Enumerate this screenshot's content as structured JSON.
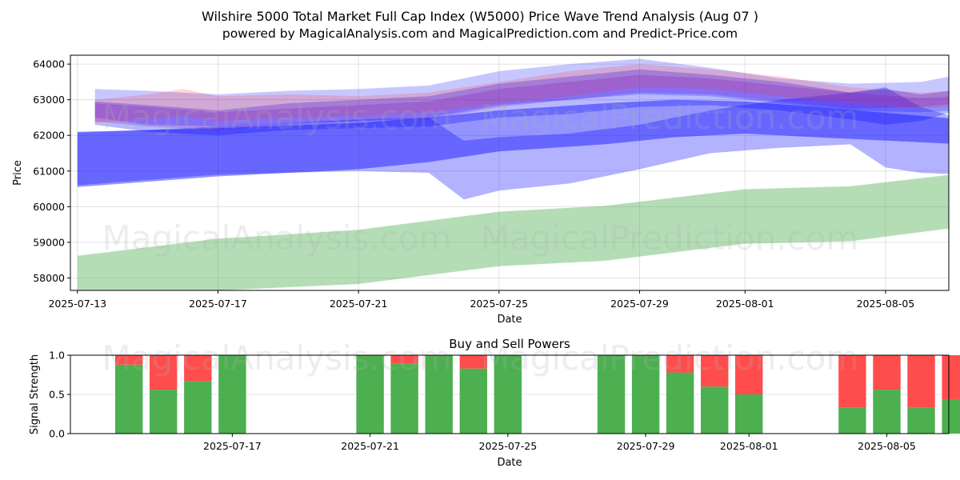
{
  "title_line1": "Wilshire 5000 Total Market Full Cap Index (W5000) Price Wave Trend Analysis (Aug 07 )",
  "title_line2": "powered by MagicalAnalysis.com and MagicalPrediction.com and Predict-Price.com",
  "watermarks": [
    "MagicalAnalysis.com",
    "MagicalPrediction.com"
  ],
  "chart_data": [
    {
      "type": "area",
      "title": "Wilshire 5000 Total Market Full Cap Index (W5000) Price Wave Trend Analysis (Aug 07 )",
      "xlabel": "Date",
      "ylabel": "Price",
      "x_start": "2025-07-13",
      "xlim_days": [
        -0.2,
        24.8
      ],
      "ylim": [
        57650,
        64250
      ],
      "x_ticks": [
        {
          "day": 0,
          "label": "2025-07-13"
        },
        {
          "day": 4,
          "label": "2025-07-17"
        },
        {
          "day": 8,
          "label": "2025-07-21"
        },
        {
          "day": 12,
          "label": "2025-07-25"
        },
        {
          "day": 16,
          "label": "2025-07-29"
        },
        {
          "day": 19,
          "label": "2025-08-01"
        },
        {
          "day": 23,
          "label": "2025-08-05"
        }
      ],
      "y_ticks": [
        58000,
        59000,
        60000,
        61000,
        62000,
        63000,
        64000
      ],
      "grid": true,
      "series": [
        {
          "name": "green band",
          "color": "#4caf50",
          "opacity": 0.42,
          "x": [
            0,
            4,
            8,
            12,
            15,
            19,
            22,
            25.3
          ],
          "upper": [
            58620,
            59100,
            59350,
            59860,
            60020,
            60490,
            60570,
            60950
          ],
          "lower": [
            57450,
            57650,
            57830,
            58330,
            58480,
            58960,
            59030,
            59450
          ]
        },
        {
          "name": "blue band (wide)",
          "color": "#0000ff",
          "opacity": 0.3,
          "x": [
            0,
            2,
            4,
            8,
            10,
            11,
            12,
            14,
            16,
            18,
            20,
            22,
            23,
            24,
            25.2
          ],
          "upper": [
            62080,
            62150,
            62250,
            62450,
            62500,
            61850,
            61950,
            62050,
            62300,
            62700,
            63000,
            63200,
            63350,
            62800,
            62450
          ],
          "lower": [
            60600,
            60750,
            60900,
            61000,
            60950,
            60200,
            60450,
            60650,
            61050,
            61500,
            61650,
            61750,
            61100,
            60950,
            60900
          ]
        },
        {
          "name": "blue band (core)",
          "color": "#0000ff",
          "opacity": 0.42,
          "x": [
            0,
            4,
            8,
            10,
            12,
            15,
            17,
            19,
            21,
            25.2
          ],
          "upper": [
            62100,
            62200,
            62350,
            62500,
            62700,
            62900,
            63000,
            62950,
            62800,
            62450
          ],
          "lower": [
            60550,
            60850,
            61050,
            61250,
            61550,
            61750,
            61950,
            62050,
            61950,
            61750
          ]
        },
        {
          "name": "blue band (upper A)",
          "color": "#0000ff",
          "opacity": 0.22,
          "x": [
            0.5,
            2,
            4,
            6,
            8,
            10,
            12,
            14,
            16,
            18,
            20,
            22,
            24,
            25.1
          ],
          "upper": [
            63300,
            63250,
            63150,
            63250,
            63300,
            63400,
            63800,
            64000,
            64150,
            63900,
            63600,
            63450,
            63500,
            63700
          ],
          "lower": [
            62500,
            62300,
            62250,
            62350,
            62400,
            62500,
            62850,
            63000,
            63150,
            63100,
            62900,
            62700,
            62650,
            62700
          ]
        },
        {
          "name": "blue band (upper B)",
          "color": "#0000ff",
          "opacity": 0.28,
          "x": [
            0.5,
            2,
            4,
            6,
            8,
            10,
            12,
            14,
            16,
            18,
            20,
            22,
            23,
            24,
            25.2
          ],
          "upper": [
            62950,
            62850,
            62700,
            62900,
            63000,
            63100,
            63450,
            63650,
            63850,
            63700,
            63500,
            63200,
            63300,
            63150,
            63300
          ],
          "lower": [
            62300,
            62100,
            62000,
            62150,
            62200,
            62250,
            62500,
            62600,
            62800,
            62850,
            62700,
            62450,
            62300,
            62400,
            62750
          ]
        },
        {
          "name": "purple band",
          "color": "#6600cc",
          "opacity": 0.22,
          "x": [
            0.5,
            2,
            4,
            6,
            8,
            10,
            12,
            14,
            16,
            18,
            20,
            22,
            24,
            25.1
          ],
          "upper": [
            62900,
            62800,
            62650,
            62750,
            62850,
            62950,
            63300,
            63500,
            63700,
            63600,
            63400,
            63200,
            63050,
            63100
          ],
          "lower": [
            62400,
            62250,
            62150,
            62300,
            62400,
            62450,
            62800,
            63000,
            63200,
            63150,
            62950,
            62750,
            62800,
            62900
          ]
        },
        {
          "name": "red band",
          "color": "#ff3333",
          "opacity": 0.2,
          "x": [
            0.5,
            2,
            3,
            4,
            6,
            8,
            10,
            12,
            14,
            16,
            18,
            20,
            22,
            24,
            25.1
          ],
          "upper": [
            63000,
            63150,
            63300,
            63100,
            63150,
            63100,
            63200,
            63500,
            63800,
            64000,
            63850,
            63650,
            63350,
            63200,
            63250
          ],
          "lower": [
            62350,
            62450,
            62550,
            62400,
            62500,
            62550,
            62650,
            62900,
            63100,
            63350,
            63300,
            63100,
            62900,
            62750,
            62800
          ]
        }
      ]
    },
    {
      "type": "bar",
      "title": "Buy and Sell Powers",
      "xlabel": "Date",
      "ylabel": "Signal Strength",
      "ylim": [
        0,
        1
      ],
      "y_ticks": [
        0.0,
        0.5,
        1.0
      ],
      "y_tick_labels": [
        "0.0",
        "0.5",
        "1.0"
      ],
      "xlim_days": [
        -0.7,
        24.8
      ],
      "x_ticks": [
        {
          "day": 4,
          "label": "2025-07-17"
        },
        {
          "day": 8,
          "label": "2025-07-21"
        },
        {
          "day": 12,
          "label": "2025-07-25"
        },
        {
          "day": 16,
          "label": "2025-07-29"
        },
        {
          "day": 19,
          "label": "2025-08-01"
        },
        {
          "day": 23,
          "label": "2025-08-05"
        }
      ],
      "buy_color": "#4caf50",
      "sell_color": "#ff4d4d",
      "series": [
        {
          "name": "Buy",
          "days": [
            1,
            2,
            3,
            4,
            8,
            9,
            10,
            11,
            12,
            15,
            16,
            17,
            18,
            19,
            22,
            23,
            24,
            25
          ],
          "values": [
            0.88,
            0.56,
            0.67,
            1.0,
            1.0,
            0.89,
            1.0,
            0.83,
            1.0,
            1.0,
            1.0,
            0.78,
            0.6,
            0.5,
            0.33,
            0.56,
            0.33,
            0.44
          ]
        },
        {
          "name": "Sell",
          "days": [
            1,
            2,
            3,
            4,
            8,
            9,
            10,
            11,
            12,
            15,
            16,
            17,
            18,
            19,
            22,
            23,
            24,
            25
          ],
          "values": [
            0.12,
            0.44,
            0.33,
            0.0,
            0.0,
            0.11,
            0.0,
            0.17,
            0.0,
            0.0,
            0.0,
            0.22,
            0.4,
            0.5,
            0.67,
            0.44,
            0.67,
            0.56
          ]
        }
      ]
    }
  ]
}
